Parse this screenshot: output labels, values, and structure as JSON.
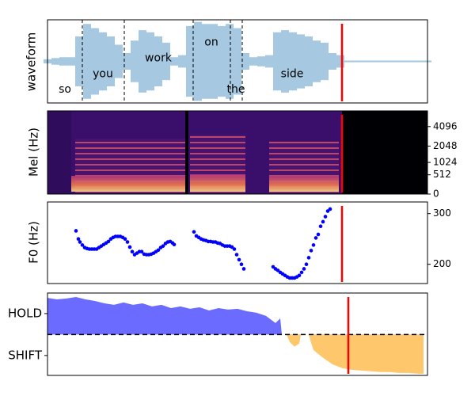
{
  "chart_data": [
    {
      "type": "waveform",
      "ylabel": "waveform",
      "xlim": [
        0,
        480
      ],
      "ylim": [
        -1,
        1
      ],
      "color": "#a6c8e0",
      "x": [
        0,
        10,
        20,
        30,
        40,
        50,
        60,
        70,
        80,
        90,
        100,
        110,
        120,
        130,
        140,
        150,
        160,
        170,
        180,
        190,
        200,
        210,
        220,
        230,
        240,
        250,
        260,
        270,
        280,
        290,
        300,
        310,
        320,
        330,
        340,
        350,
        360,
        370,
        380,
        390,
        400,
        410,
        420,
        430,
        440,
        450,
        460,
        470,
        480
      ],
      "values": [
        0.05,
        0.08,
        0.1,
        0.1,
        0.6,
        0.9,
        0.8,
        0.7,
        0.6,
        0.4,
        0.2,
        0.5,
        0.75,
        0.7,
        0.6,
        0.45,
        0.1,
        0.15,
        0.85,
        0.95,
        0.9,
        0.9,
        0.85,
        0.9,
        0.8,
        0.2,
        0.1,
        0.12,
        0.15,
        0.7,
        0.75,
        0.7,
        0.65,
        0.6,
        0.5,
        0.45,
        0.2,
        0.15,
        0.02,
        0.02,
        0.02,
        0.02,
        0.02,
        0.02,
        0.02,
        0.02,
        0.02,
        0.02,
        0.02
      ],
      "words": [
        {
          "text": "so",
          "x": 22,
          "y": -0.68
        },
        {
          "text": "you",
          "x": 70,
          "y": -0.3
        },
        {
          "text": "work",
          "x": 140,
          "y": 0.08
        },
        {
          "text": "on",
          "x": 207,
          "y": 0.46
        },
        {
          "text": "the",
          "x": 238,
          "y": -0.68
        },
        {
          "text": "side",
          "x": 309,
          "y": -0.3
        }
      ],
      "boundaries": [
        44,
        97,
        184,
        231,
        246
      ],
      "cursor": 372,
      "cursor_color": "red"
    },
    {
      "type": "spectrogram",
      "ylabel": "Mel (Hz)",
      "xlim": [
        0,
        480
      ],
      "yscale": "mel",
      "ylim": [
        0,
        6800
      ],
      "yticks": [
        0,
        512,
        1024,
        2048,
        4096
      ],
      "cursor": 372,
      "cursor_color": "red"
    },
    {
      "type": "scatter",
      "ylabel": "F0 (Hz)",
      "xlim": [
        0,
        480
      ],
      "ylim": [
        162,
        323
      ],
      "yticks": [
        200,
        300
      ],
      "color": "blue",
      "x": [
        36,
        39,
        41,
        44,
        47,
        50,
        53,
        56,
        59,
        62,
        65,
        68,
        71,
        74,
        77,
        80,
        83,
        86,
        89,
        92,
        95,
        98,
        101,
        104,
        107,
        110,
        113,
        116,
        119,
        122,
        125,
        128,
        131,
        134,
        137,
        140,
        143,
        146,
        149,
        152,
        155,
        158,
        160,
        185,
        188,
        191,
        194,
        197,
        200,
        203,
        206,
        209,
        212,
        215,
        218,
        221,
        224,
        227,
        230,
        233,
        236,
        239,
        242,
        245,
        248,
        285,
        288,
        291,
        294,
        297,
        300,
        303,
        306,
        309,
        312,
        315,
        318,
        321,
        324,
        327,
        330,
        333,
        336,
        339,
        342,
        345,
        348,
        351,
        354,
        357
      ],
      "values": [
        266,
        250,
        244,
        238,
        233,
        231,
        230,
        230,
        230,
        230,
        233,
        236,
        239,
        242,
        245,
        250,
        253,
        255,
        255,
        255,
        253,
        250,
        244,
        234,
        225,
        219,
        222,
        225,
        225,
        220,
        219,
        219,
        220,
        222,
        225,
        228,
        233,
        236,
        241,
        244,
        245,
        242,
        239,
        264,
        256,
        253,
        250,
        248,
        247,
        245,
        245,
        244,
        244,
        242,
        241,
        238,
        236,
        236,
        236,
        234,
        230,
        219,
        209,
        200,
        191,
        195,
        191,
        188,
        184,
        181,
        178,
        175,
        173,
        173,
        173,
        175,
        178,
        184,
        191,
        200,
        213,
        227,
        238,
        252,
        259,
        275,
        284,
        294,
        305,
        309
      ],
      "cursor": 372,
      "cursor_color": "red"
    },
    {
      "type": "area",
      "xlim": [
        0,
        480
      ],
      "ylim": [
        -1.95,
        1.98
      ],
      "yticks": [
        {
          "value": 1,
          "label": "HOLD"
        },
        {
          "value": -1,
          "label": "SHIFT"
        }
      ],
      "colors": {
        "positive": "#6b6bff",
        "negative": "#ffc76b"
      },
      "hline": 0,
      "x": [
        0,
        12,
        24,
        36,
        48,
        60,
        72,
        84,
        96,
        108,
        120,
        132,
        144,
        156,
        168,
        180,
        192,
        204,
        216,
        228,
        240,
        252,
        264,
        276,
        288,
        294,
        296,
        302,
        306,
        312,
        318,
        320,
        330,
        332,
        336,
        348,
        360,
        372,
        384,
        396,
        408,
        420,
        432,
        444,
        456,
        468,
        475
      ],
      "values": [
        1.75,
        1.68,
        1.72,
        1.79,
        1.68,
        1.6,
        1.49,
        1.42,
        1.53,
        1.42,
        1.49,
        1.34,
        1.42,
        1.26,
        1.34,
        1.23,
        1.3,
        1.15,
        1.26,
        1.19,
        1.23,
        1.11,
        1.04,
        0.89,
        0.55,
        0.77,
        0,
        0,
        -0.36,
        -0.58,
        -0.43,
        0,
        0,
        -0.28,
        -0.74,
        -1.11,
        -1.42,
        -1.6,
        -1.68,
        -1.72,
        -1.75,
        -1.79,
        -1.79,
        -1.83,
        -1.83,
        -1.87,
        -1.87
      ],
      "cursor": 380,
      "cursor_color": "red"
    }
  ]
}
